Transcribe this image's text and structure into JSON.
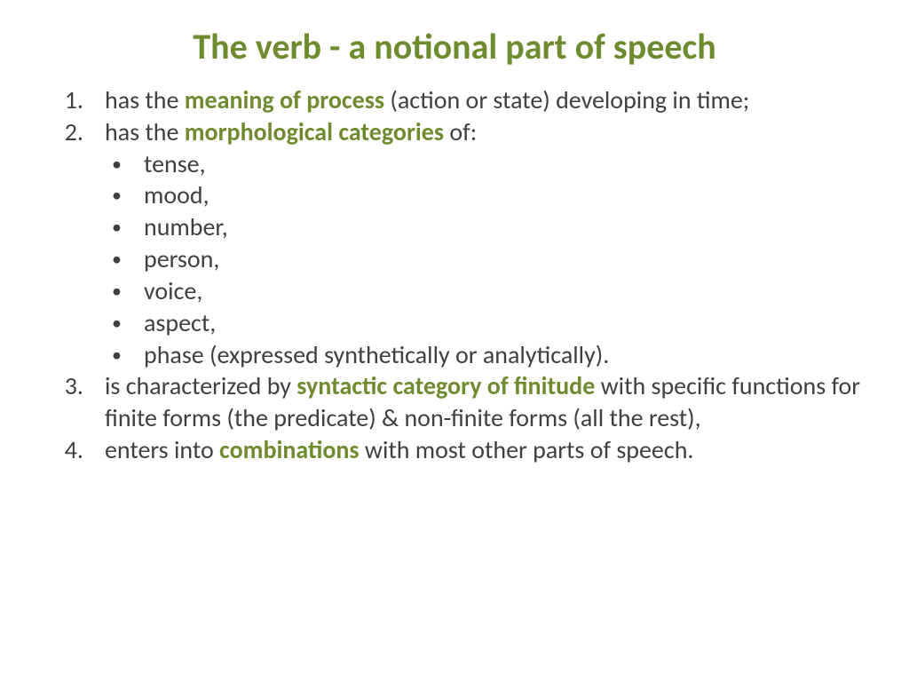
{
  "title": "The verb - a notional part of speech",
  "colors": {
    "accent": "#6f8b30",
    "text": "#404040",
    "background": "#ffffff"
  },
  "typography": {
    "title_fontsize": 40,
    "body_fontsize": 28,
    "font_family": "Calibri"
  },
  "items": {
    "1": {
      "num": "1.",
      "pre": "has the ",
      "hl": "meaning of process",
      "post": " (action or state) developing in time;"
    },
    "2": {
      "num": "2.",
      "pre": "has the ",
      "hl": "morphological categories",
      "post": " of:",
      "sub": {
        "0": "tense,",
        "1": "mood,",
        "2": "number,",
        "3": "person,",
        "4": "voice,",
        "5": "aspect,",
        "6": "phase (expressed synthetically or analytically)."
      }
    },
    "3": {
      "num": "3.",
      "pre": "is characterized by ",
      "hl": "syntactic category of finitude",
      "post": " with specific functions for finite forms (the predicate) & non-finite forms (all the rest),"
    },
    "4": {
      "num": "4.",
      "pre": "enters into ",
      "hl": "combinations",
      "post": " with most other parts of speech."
    }
  }
}
